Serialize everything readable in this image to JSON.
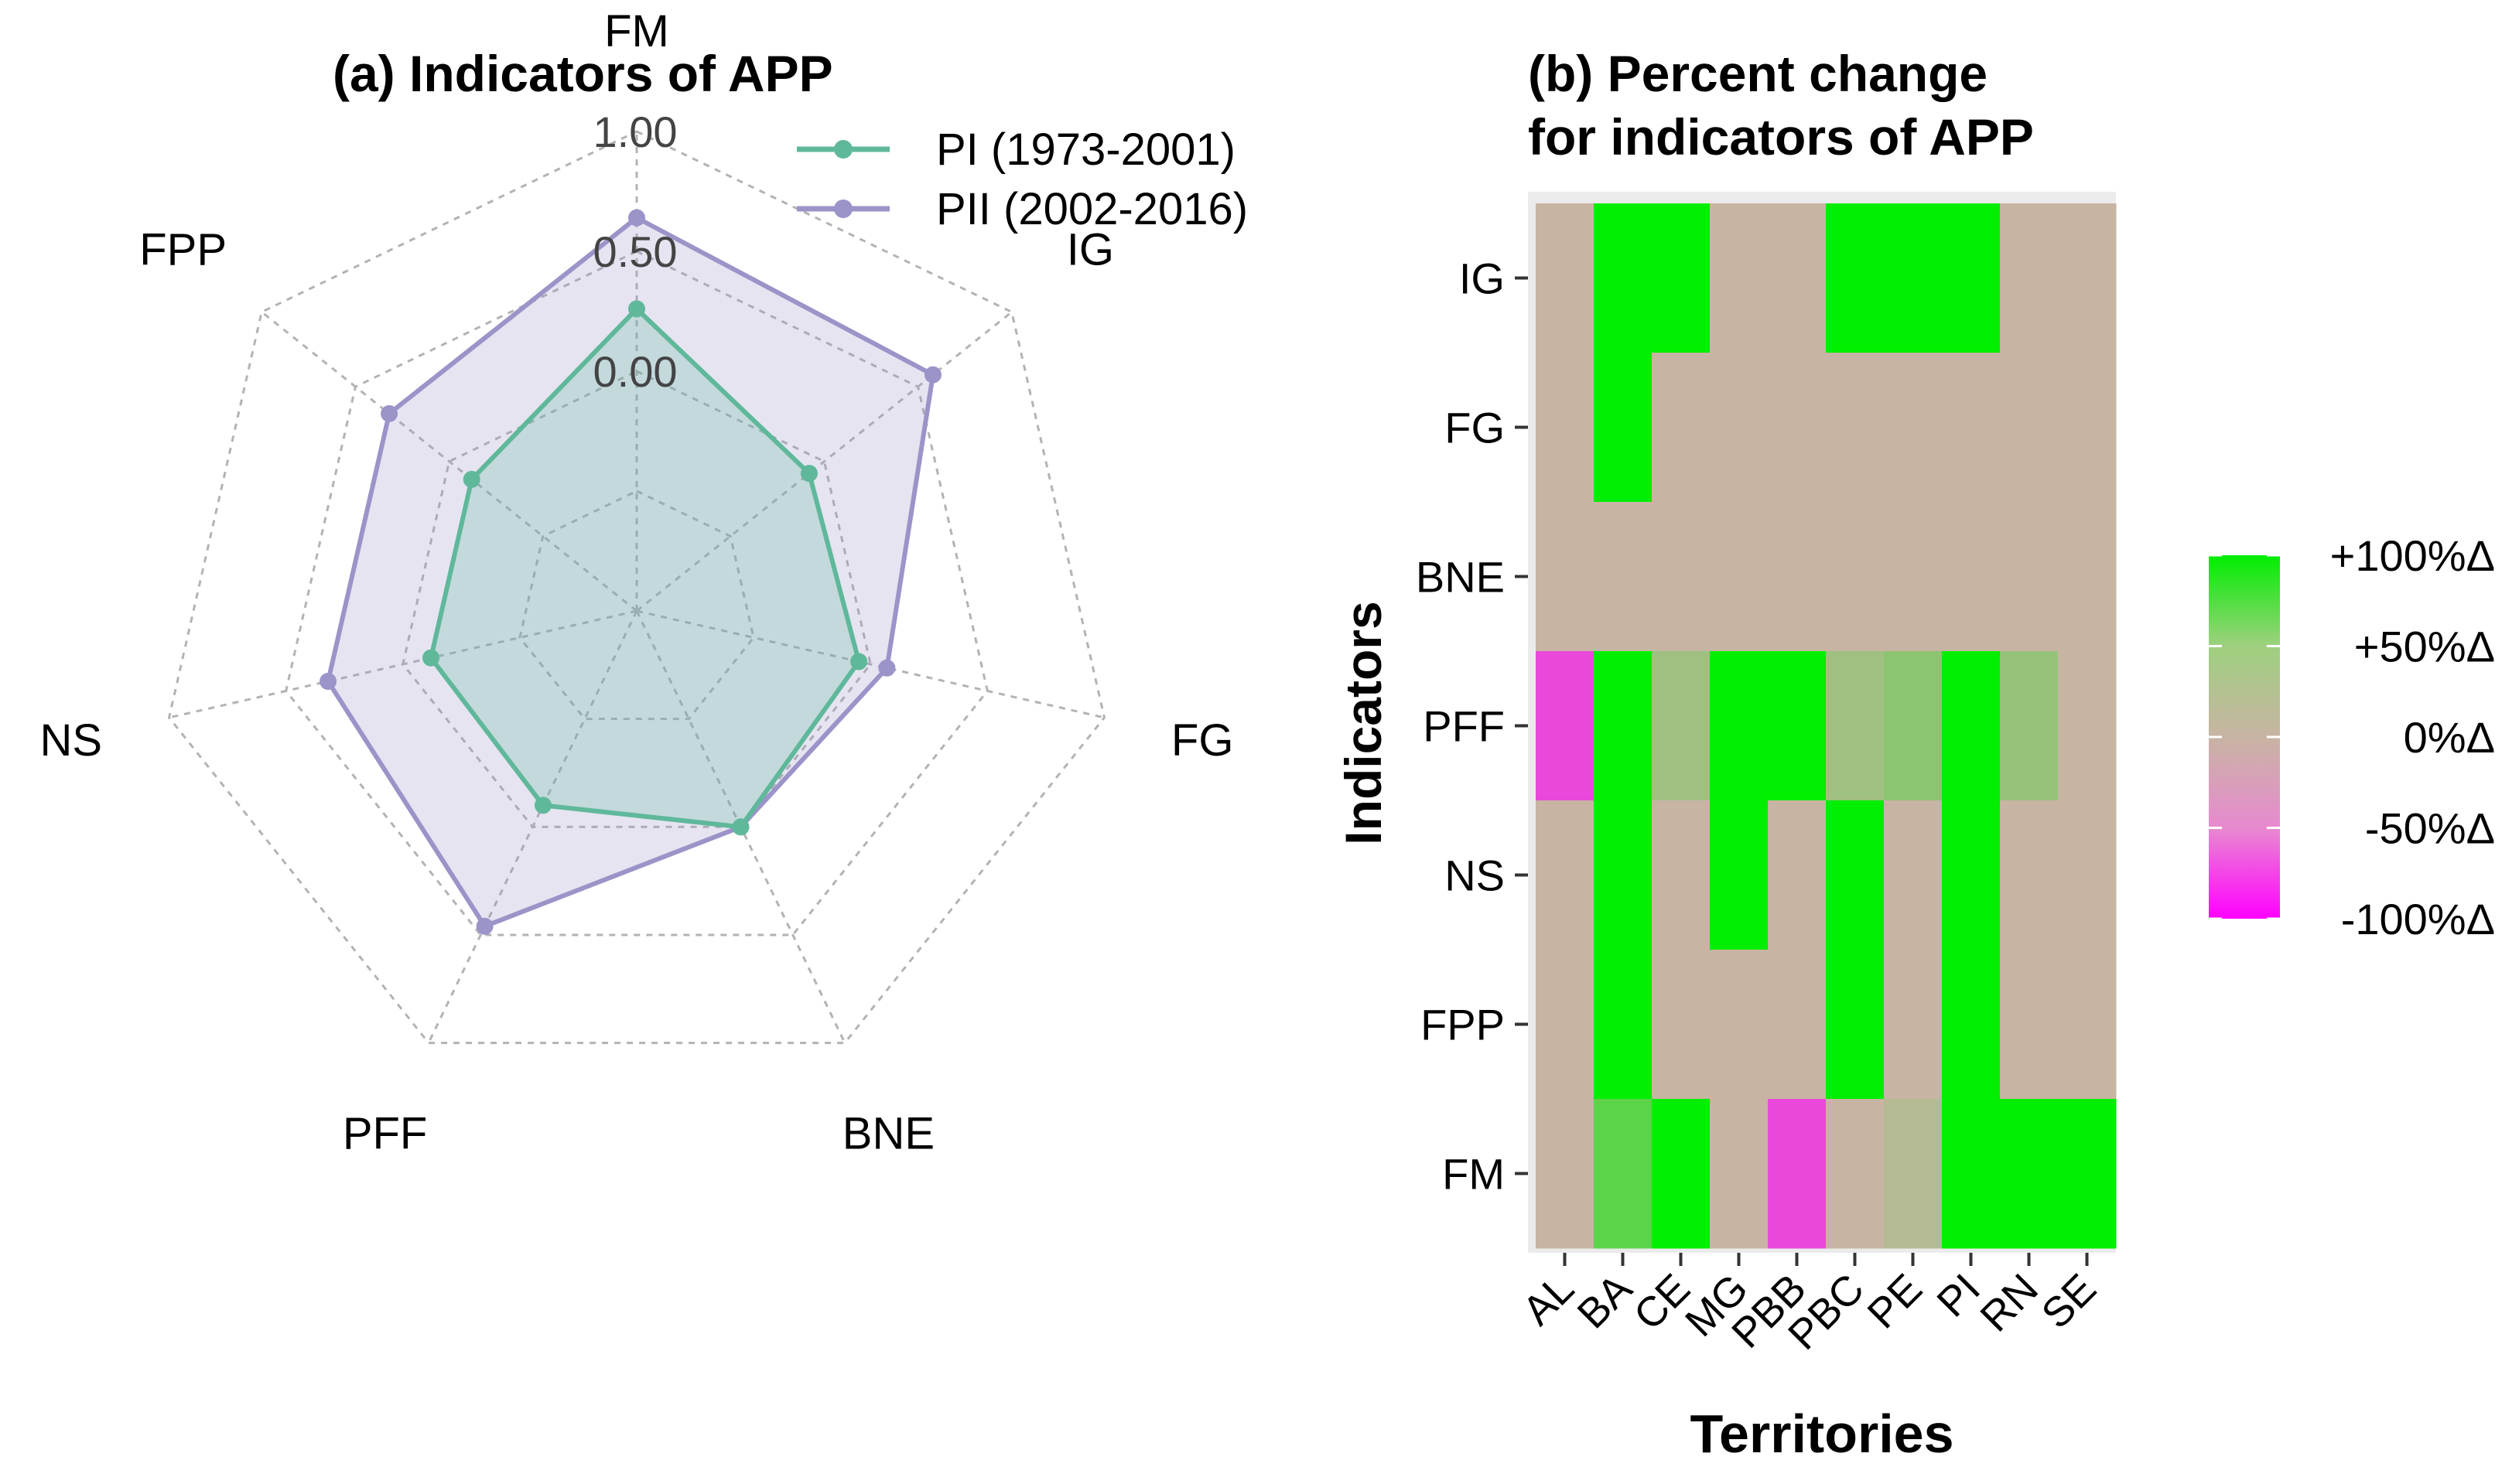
{
  "chart_data": [
    {
      "type": "radar",
      "title": "(a) Indicators of APP",
      "axes": [
        "FM",
        "IG",
        "FG",
        "BNE",
        "PFF",
        "NS",
        "FPP"
      ],
      "tick_labels": [
        "1.00",
        "0.50",
        "0.00"
      ],
      "range": [
        -1.0,
        1.0
      ],
      "legend_position": "top-right",
      "series": [
        {
          "name": "PI (1973-2001)",
          "color": "#5fb89a",
          "values": [
            0.26,
            -0.08,
            -0.05,
            0.0,
            -0.1,
            -0.12,
            -0.12
          ]
        },
        {
          "name": "PII (2002-2016)",
          "color": "#9a94c8",
          "values": [
            0.64,
            0.58,
            0.07,
            0.0,
            0.46,
            0.32,
            0.32
          ]
        }
      ]
    },
    {
      "type": "heatmap",
      "title_line1": "(b) Percent change",
      "title_line2": "for indicators of APP",
      "xlabel": "Territories",
      "ylabel": "Indicators",
      "x": [
        "AL",
        "BA",
        "CE",
        "MG",
        "PBB",
        "PBC",
        "PE",
        "PI",
        "RN",
        "SE"
      ],
      "y": [
        "IG",
        "FG",
        "BNE",
        "PFF",
        "NS",
        "FPP",
        "FM"
      ],
      "values": [
        [
          0,
          100,
          100,
          0,
          0,
          100,
          100,
          100,
          0,
          0
        ],
        [
          0,
          100,
          0,
          0,
          0,
          0,
          0,
          0,
          0,
          0
        ],
        [
          0,
          0,
          0,
          0,
          0,
          0,
          0,
          0,
          0,
          0
        ],
        [
          -60,
          100,
          20,
          100,
          100,
          20,
          30,
          100,
          25,
          0
        ],
        [
          0,
          100,
          0,
          100,
          0,
          100,
          0,
          100,
          0,
          0
        ],
        [
          0,
          100,
          0,
          0,
          0,
          100,
          0,
          100,
          0,
          0
        ],
        [
          0,
          55,
          100,
          0,
          -60,
          0,
          10,
          100,
          100,
          100
        ]
      ],
      "colorbar": {
        "labels": [
          "+100%Δ",
          "+50%Δ",
          "0%Δ",
          "-50%Δ",
          "-100%Δ"
        ],
        "values": [
          100,
          50,
          0,
          -50,
          -100
        ],
        "high_color": "#00ee00",
        "mid_color": "#c8b4a3",
        "low_color": "#ff00ff"
      }
    }
  ]
}
